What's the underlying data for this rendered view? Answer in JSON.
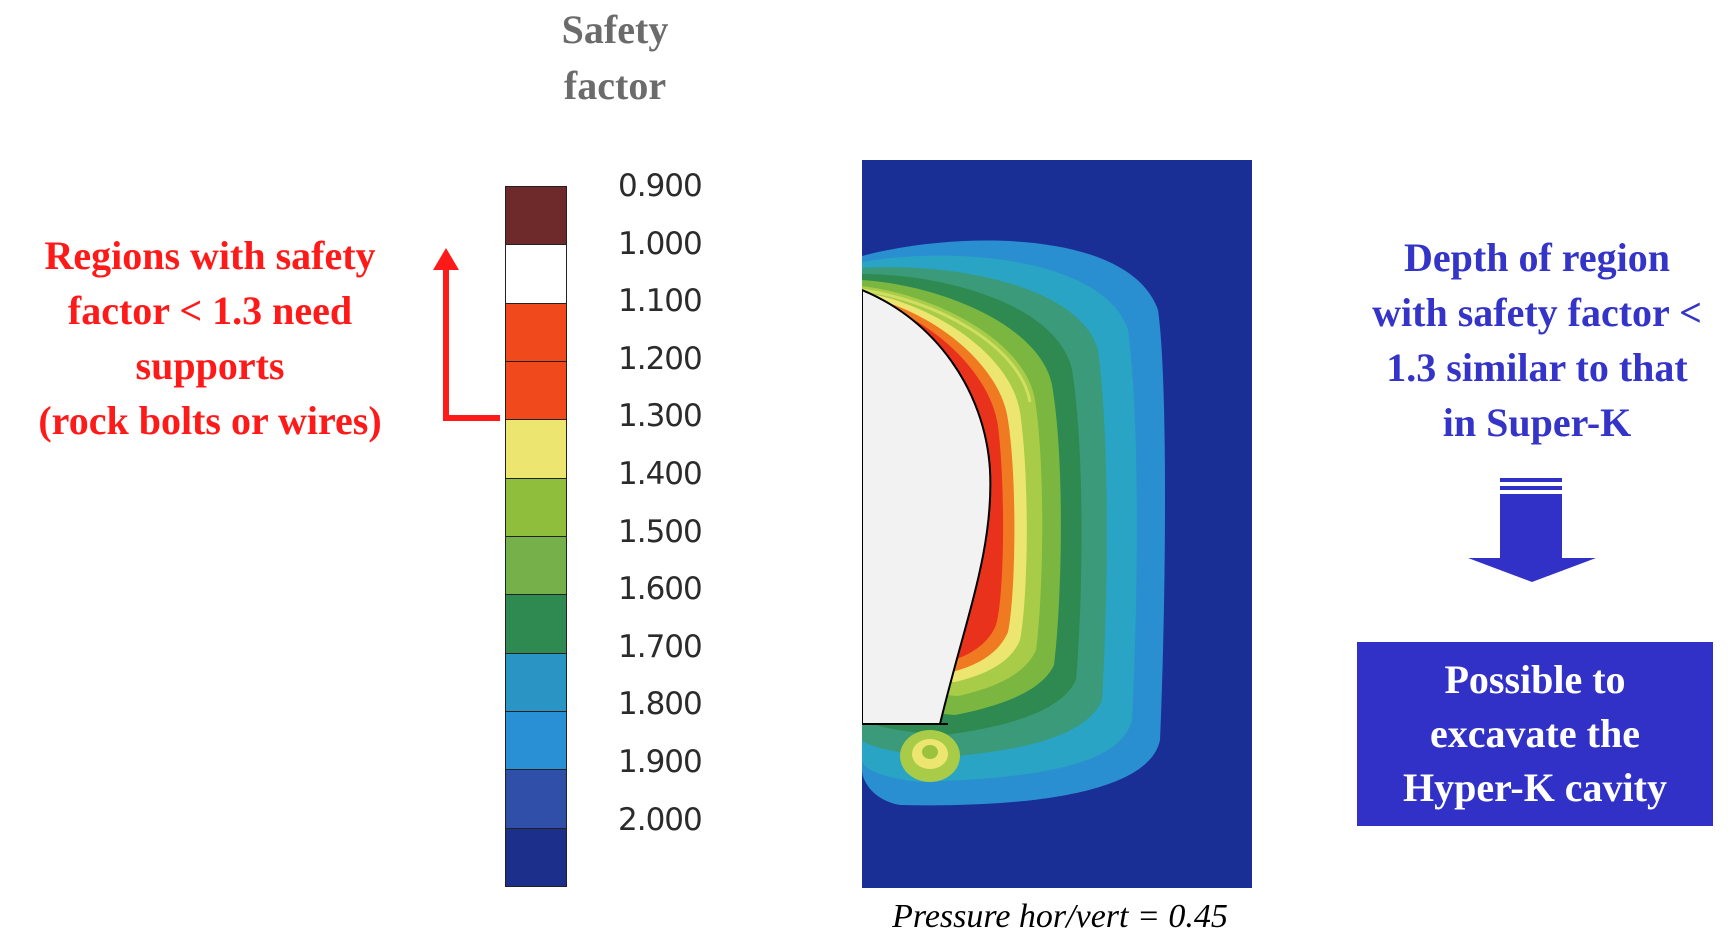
{
  "colorbar": {
    "title_lines": [
      "Safety",
      "factor"
    ],
    "labels": [
      "0.900",
      "1.000",
      "1.100",
      "1.200",
      "1.300",
      "1.400",
      "1.500",
      "1.600",
      "1.700",
      "1.800",
      "1.900",
      "2.000"
    ],
    "colors": [
      "#6e2a2a",
      "#ffffff",
      "#f04a1c",
      "#f04a1c",
      "#ece670",
      "#8fbe3c",
      "#75b04a",
      "#2e8a50",
      "#2a95c4",
      "#2a90d6",
      "#2f4fa8",
      "#1c2f8a"
    ]
  },
  "left_note": {
    "lines": [
      "Regions with safety",
      "factor < 1.3 need",
      "supports",
      "(rock bolts or wires)"
    ],
    "color": "#ff1a1a"
  },
  "right_note": {
    "lines": [
      "Depth of region",
      "with safety factor <",
      "1.3 similar to that",
      "in Super-K"
    ],
    "color": "#3434c8"
  },
  "result_box": {
    "lines": [
      "Possible to",
      "excavate the",
      "Hyper-K cavity"
    ],
    "background": "#3131c8"
  },
  "contour_plot": {
    "caption": "Pressure hor/vert = 0.45",
    "background": "#1a2f95"
  }
}
